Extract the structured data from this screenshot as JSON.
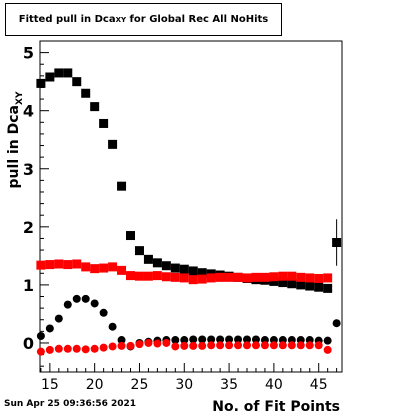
{
  "chart_data": {
    "type": "scatter",
    "title_main": "Fitted pull in Dca",
    "title_sub": "XY",
    "title_tail": " for Global Rec All NoHits",
    "xlabel": "No. of Fit Points",
    "ylabel_main": "pull in Dca",
    "ylabel_sub": "XY",
    "xlim": [
      13.9,
      47.6
    ],
    "ylim": [
      -0.5,
      5.2
    ],
    "x_ticks": [
      15,
      20,
      25,
      30,
      35,
      40,
      45
    ],
    "y_ticks": [
      0,
      1,
      2,
      3,
      4,
      5
    ],
    "footer": "Sun Apr 25 09:36:56 2021",
    "series": [
      {
        "color": "#000000",
        "marker": "square",
        "x": [
          14,
          15,
          16,
          17,
          18,
          19,
          20,
          21,
          22,
          23,
          24,
          25,
          26,
          27,
          28,
          29,
          30,
          31,
          32,
          33,
          34,
          35,
          36,
          37,
          38,
          39,
          40,
          41,
          42,
          43,
          44,
          45,
          46,
          47
        ],
        "y": [
          4.47,
          4.58,
          4.65,
          4.65,
          4.5,
          4.3,
          4.07,
          3.78,
          3.42,
          2.7,
          1.85,
          1.59,
          1.44,
          1.38,
          1.33,
          1.29,
          1.27,
          1.24,
          1.21,
          1.19,
          1.17,
          1.15,
          1.13,
          1.11,
          1.09,
          1.08,
          1.06,
          1.04,
          1.02,
          1.0,
          0.98,
          0.96,
          0.94,
          1.73
        ],
        "err": [
          0,
          0,
          0,
          0,
          0,
          0,
          0,
          0,
          0,
          0,
          0,
          0,
          0,
          0,
          0,
          0,
          0,
          0,
          0,
          0,
          0,
          0,
          0,
          0,
          0,
          0,
          0,
          0,
          0,
          0,
          0,
          0,
          0,
          0.4
        ]
      },
      {
        "color": "#ff0000",
        "marker": "square",
        "x": [
          14,
          15,
          16,
          17,
          18,
          19,
          20,
          21,
          22,
          23,
          24,
          25,
          26,
          27,
          28,
          29,
          30,
          31,
          32,
          33,
          34,
          35,
          36,
          37,
          38,
          39,
          40,
          41,
          42,
          43,
          44,
          45,
          46
        ],
        "y": [
          1.34,
          1.35,
          1.36,
          1.35,
          1.36,
          1.31,
          1.28,
          1.29,
          1.31,
          1.25,
          1.16,
          1.15,
          1.15,
          1.16,
          1.14,
          1.13,
          1.12,
          1.09,
          1.1,
          1.12,
          1.13,
          1.13,
          1.13,
          1.12,
          1.13,
          1.13,
          1.14,
          1.15,
          1.15,
          1.13,
          1.12,
          1.11,
          1.12
        ]
      },
      {
        "color": "#000000",
        "marker": "circle",
        "x": [
          14,
          15,
          16,
          17,
          18,
          19,
          20,
          21,
          22,
          23,
          24,
          25,
          26,
          27,
          28,
          29,
          30,
          31,
          32,
          33,
          34,
          35,
          36,
          37,
          38,
          39,
          40,
          41,
          42,
          43,
          44,
          45,
          46,
          47
        ],
        "y": [
          0.12,
          0.25,
          0.42,
          0.66,
          0.76,
          0.76,
          0.68,
          0.52,
          0.28,
          0.05,
          -0.06,
          0.0,
          0.02,
          0.04,
          0.05,
          0.05,
          0.05,
          0.06,
          0.06,
          0.06,
          0.06,
          0.06,
          0.06,
          0.06,
          0.06,
          0.05,
          0.05,
          0.05,
          0.05,
          0.05,
          0.05,
          0.04,
          0.04,
          0.34
        ]
      },
      {
        "color": "#ff0000",
        "marker": "circle",
        "x": [
          14,
          15,
          16,
          17,
          18,
          19,
          20,
          21,
          22,
          23,
          24,
          25,
          26,
          27,
          28,
          29,
          30,
          31,
          32,
          33,
          34,
          35,
          36,
          37,
          38,
          39,
          40,
          41,
          42,
          43,
          44,
          45,
          46
        ],
        "y": [
          -0.15,
          -0.12,
          -0.1,
          -0.1,
          -0.1,
          -0.11,
          -0.1,
          -0.08,
          -0.06,
          -0.05,
          -0.05,
          -0.02,
          0.0,
          -0.01,
          0.0,
          -0.06,
          -0.05,
          -0.05,
          -0.05,
          -0.04,
          -0.04,
          -0.04,
          -0.04,
          -0.04,
          -0.04,
          -0.04,
          -0.04,
          -0.04,
          -0.04,
          -0.04,
          -0.04,
          -0.04,
          -0.12
        ]
      }
    ]
  }
}
